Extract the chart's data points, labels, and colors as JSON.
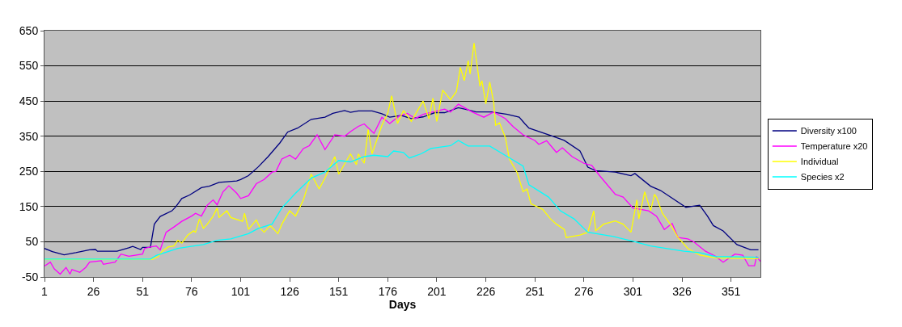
{
  "chart_data": {
    "type": "line",
    "xlabel": "Days",
    "xlim": [
      1,
      366
    ],
    "xticks": [
      1,
      26,
      51,
      76,
      101,
      126,
      151,
      176,
      201,
      226,
      251,
      276,
      301,
      326,
      351
    ],
    "ylim": [
      -50,
      650
    ],
    "yticks": [
      -50,
      50,
      150,
      250,
      350,
      450,
      550,
      650
    ],
    "grid": "y",
    "legend": "right",
    "marker": "none",
    "line_style": "solid",
    "series": [
      {
        "name": "Diversity x100",
        "color": "#000080",
        "x": [
          1,
          5,
          11,
          17,
          24,
          27,
          28,
          38,
          44,
          46,
          50,
          51,
          55,
          57,
          60,
          66,
          68,
          71,
          75,
          81,
          85,
          90,
          99,
          101,
          105,
          110,
          115,
          121,
          125,
          130,
          137,
          144,
          148,
          154,
          157,
          161,
          168,
          173,
          177,
          183,
          188,
          194,
          200,
          205,
          212,
          217,
          221,
          229,
          237,
          243,
          246,
          248,
          260,
          266,
          274,
          278,
          282,
          292,
          300,
          302,
          310,
          315,
          328,
          335,
          339,
          342,
          347,
          354,
          361,
          365
        ],
        "values": [
          31,
          22,
          13,
          19,
          27,
          28,
          23,
          23,
          33,
          37,
          28,
          34,
          34,
          100,
          122,
          138,
          150,
          173,
          183,
          204,
          208,
          219,
          223,
          227,
          238,
          263,
          292,
          331,
          362,
          373,
          398,
          404,
          415,
          423,
          418,
          422,
          422,
          414,
          404,
          409,
          400,
          405,
          417,
          417,
          431,
          425,
          419,
          419,
          412,
          404,
          385,
          373,
          350,
          338,
          308,
          262,
          252,
          248,
          238,
          244,
          208,
          196,
          148,
          154,
          123,
          96,
          81,
          42,
          27,
          27
        ]
      },
      {
        "name": "Temperature x20",
        "color": "#ff00ff",
        "x": [
          1,
          4,
          6,
          9,
          12,
          14,
          15,
          19,
          22,
          24,
          30,
          31,
          37,
          40,
          44,
          51,
          52,
          55,
          58,
          60,
          63,
          67,
          71,
          76,
          78,
          81,
          84,
          87,
          89,
          92,
          95,
          99,
          101,
          105,
          109,
          113,
          117,
          119,
          122,
          126,
          129,
          133,
          136,
          140,
          144,
          149,
          154,
          157,
          161,
          164,
          169,
          173,
          177,
          182,
          186,
          190,
          194,
          199,
          205,
          208,
          212,
          219,
          225,
          230,
          236,
          240,
          245,
          251,
          253,
          257,
          262,
          265,
          270,
          276,
          280,
          284,
          292,
          296,
          301,
          309,
          313,
          317,
          321,
          324,
          329,
          332,
          338,
          343,
          347,
          353,
          357,
          360,
          363,
          364,
          366
        ],
        "values": [
          -19,
          -8,
          -27,
          -42,
          -23,
          -42,
          -29,
          -37,
          -23,
          -8,
          -4,
          -14,
          -8,
          15,
          9,
          15,
          31,
          35,
          38,
          27,
          77,
          92,
          108,
          123,
          131,
          123,
          154,
          169,
          155,
          192,
          209,
          188,
          173,
          181,
          215,
          227,
          248,
          250,
          285,
          296,
          285,
          315,
          323,
          354,
          312,
          354,
          350,
          363,
          378,
          385,
          358,
          404,
          386,
          408,
          415,
          400,
          412,
          419,
          427,
          419,
          441,
          419,
          404,
          419,
          400,
          377,
          354,
          338,
          327,
          337,
          304,
          317,
          292,
          273,
          267,
          238,
          185,
          177,
          146,
          138,
          123,
          85,
          102,
          62,
          58,
          50,
          23,
          9,
          -8,
          15,
          12,
          -18,
          -18,
          8,
          -6
        ]
      },
      {
        "name": "Individual",
        "color": "#ffff00",
        "x": [
          1,
          56,
          59,
          61,
          64,
          67,
          69,
          71,
          74,
          77,
          78,
          80,
          82,
          84,
          87,
          89,
          90,
          94,
          96,
          102,
          103,
          105,
          109,
          111,
          113,
          116,
          118,
          120,
          122,
          126,
          129,
          133,
          137,
          141,
          144,
          149,
          151,
          157,
          160,
          161,
          164,
          166,
          168,
          173,
          176,
          178,
          181,
          184,
          188,
          194,
          197,
          199,
          201,
          204,
          208,
          211,
          213,
          215,
          217,
          218,
          220,
          223,
          224,
          226,
          228,
          230,
          231,
          233,
          236,
          238,
          242,
          245,
          247,
          249,
          255,
          259,
          262,
          266,
          267,
          274,
          278,
          281,
          282,
          286,
          292,
          296,
          300,
          303,
          304,
          307,
          310,
          312,
          313,
          316,
          320,
          324,
          329,
          335,
          343,
          365
        ],
        "values": [
          0,
          0,
          8,
          23,
          35,
          38,
          54,
          46,
          69,
          81,
          77,
          115,
          88,
          100,
          123,
          146,
          119,
          138,
          119,
          108,
          131,
          85,
          112,
          88,
          77,
          96,
          85,
          73,
          100,
          138,
          123,
          169,
          242,
          200,
          231,
          292,
          242,
          300,
          269,
          300,
          273,
          369,
          300,
          381,
          415,
          465,
          386,
          423,
          392,
          450,
          400,
          458,
          392,
          481,
          454,
          477,
          546,
          508,
          565,
          527,
          615,
          492,
          508,
          442,
          504,
          446,
          381,
          388,
          346,
          285,
          246,
          192,
          200,
          158,
          142,
          115,
          100,
          85,
          62,
          69,
          77,
          138,
          81,
          100,
          109,
          100,
          77,
          169,
          115,
          192,
          138,
          185,
          177,
          131,
          100,
          62,
          31,
          12,
          4,
          2
        ]
      },
      {
        "name": "Species x2",
        "color": "#00ffff",
        "x": [
          1,
          55,
          58,
          69,
          82,
          89,
          96,
          105,
          110,
          117,
          122,
          129,
          137,
          144,
          151,
          157,
          164,
          169,
          176,
          179,
          184,
          187,
          193,
          198,
          208,
          212,
          217,
          228,
          237,
          245,
          248,
          258,
          264,
          271,
          278,
          291,
          302,
          310,
          327,
          335,
          343,
          365
        ],
        "values": [
          1,
          1,
          11,
          31,
          42,
          54,
          58,
          73,
          88,
          100,
          146,
          188,
          231,
          248,
          281,
          277,
          292,
          296,
          292,
          308,
          304,
          288,
          300,
          315,
          323,
          338,
          322,
          322,
          292,
          265,
          212,
          177,
          138,
          115,
          77,
          65,
          50,
          38,
          23,
          19,
          8,
          6
        ]
      }
    ]
  }
}
